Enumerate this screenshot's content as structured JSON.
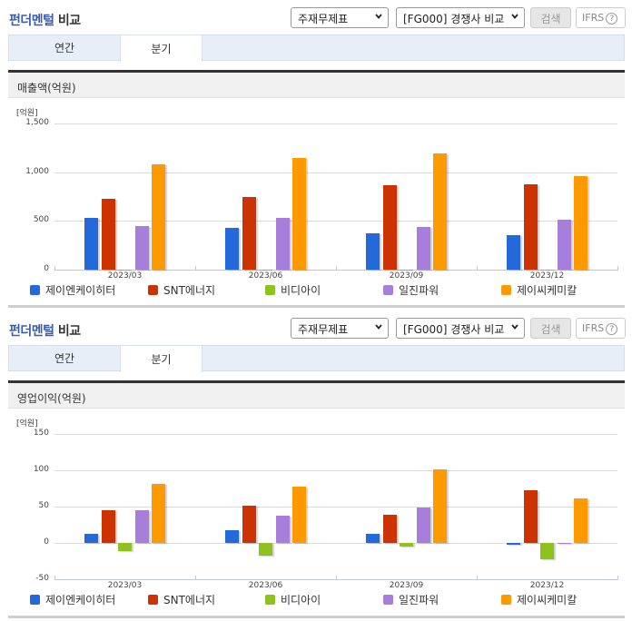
{
  "panels": [
    {
      "header": {
        "title_blue": "펀더멘털",
        "title_rest": " 비교",
        "statement_select": "주재무제표",
        "compare_select": "[FG000] 경쟁사 비교",
        "search_button": "검색",
        "ifrs_button": "IFRS",
        "help_icon": "?"
      },
      "tabs": [
        {
          "label": "연간",
          "active": false
        },
        {
          "label": "분기",
          "active": true
        }
      ],
      "section_title": "매출액(억원)",
      "unit_label": "[억원]"
    },
    {
      "header": {
        "title_blue": "펀더멘털",
        "title_rest": " 비교",
        "statement_select": "주재무제표",
        "compare_select": "[FG000] 경쟁사 비교",
        "search_button": "검색",
        "ifrs_button": "IFRS",
        "help_icon": "?"
      },
      "tabs": [
        {
          "label": "연간",
          "active": false
        },
        {
          "label": "분기",
          "active": true
        }
      ],
      "section_title": "영업이익(억원)",
      "unit_label": "[억원]"
    }
  ],
  "colors": {
    "제이엔케이히터": "#2369d9",
    "SNT에너지": "#cc3300",
    "비디아이": "#8dc21f",
    "일진파워": "#a87edb",
    "제이씨케미칼": "#ff9900",
    "title_blue": "#3b5bab"
  },
  "chart_data": [
    {
      "type": "bar",
      "title": "매출액(억원)",
      "ylabel": "[억원]",
      "xlabel": "",
      "categories": [
        "2023/03",
        "2023/06",
        "2023/09",
        "2023/12"
      ],
      "ylim": [
        0,
        1500
      ],
      "yticks": [
        "0",
        "500",
        "1,000",
        "1,500"
      ],
      "ytick_values": [
        0,
        500,
        1000,
        1500
      ],
      "grid": true,
      "legend_position": "bottom",
      "series": [
        {
          "name": "제이엔케이히터",
          "values": [
            530,
            425,
            370,
            350
          ]
        },
        {
          "name": "SNT에너지",
          "values": [
            725,
            750,
            865,
            880
          ]
        },
        {
          "name": "비디아이",
          "values": [
            0,
            0,
            0,
            0
          ]
        },
        {
          "name": "일진파워",
          "values": [
            445,
            535,
            435,
            510
          ]
        },
        {
          "name": "제이씨케미칼",
          "values": [
            1085,
            1150,
            1190,
            955
          ]
        }
      ]
    },
    {
      "type": "bar",
      "title": "영업이익(억원)",
      "ylabel": "[억원]",
      "xlabel": "",
      "categories": [
        "2023/03",
        "2023/06",
        "2023/09",
        "2023/12"
      ],
      "ylim": [
        -50,
        150
      ],
      "yticks": [
        "-50",
        "0",
        "50",
        "100",
        "150"
      ],
      "ytick_values": [
        -50,
        0,
        50,
        100,
        150
      ],
      "grid": true,
      "legend_position": "bottom",
      "series": [
        {
          "name": "제이엔케이히터",
          "values": [
            12,
            17,
            13,
            -2
          ]
        },
        {
          "name": "SNT에너지",
          "values": [
            45,
            51,
            39,
            73
          ]
        },
        {
          "name": "비디아이",
          "values": [
            -11,
            -17,
            -5,
            -22
          ]
        },
        {
          "name": "일진파워",
          "values": [
            45,
            38,
            49,
            -1
          ]
        },
        {
          "name": "제이씨케미칼",
          "values": [
            81,
            77,
            101,
            61
          ]
        }
      ]
    }
  ]
}
